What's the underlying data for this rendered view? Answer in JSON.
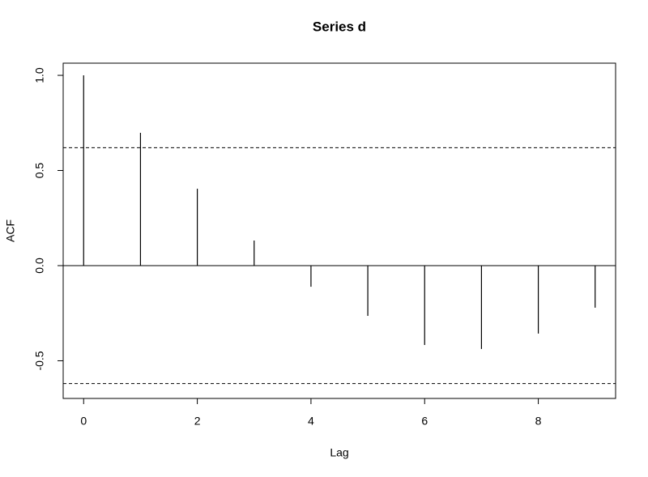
{
  "chart_data": {
    "type": "stem",
    "title": "Series  d",
    "xlabel": "Lag",
    "ylabel": "ACF",
    "x": [
      0,
      1,
      2,
      3,
      4,
      5,
      6,
      7,
      8,
      9
    ],
    "values": [
      1.0,
      0.698,
      0.404,
      0.132,
      -0.111,
      -0.264,
      -0.417,
      -0.438,
      -0.357,
      -0.221
    ],
    "color": "#000000",
    "ci": [
      0.62,
      -0.62
    ],
    "ci_color": "#000000",
    "xlim": [
      -0.36,
      9.36
    ],
    "xticks": [
      0,
      2,
      4,
      6,
      8
    ],
    "ylim": [
      -0.698,
      1.064
    ],
    "yticks": [
      -0.5,
      {
        "value": 0,
        "label": "0.0"
      },
      0.5,
      {
        "value": 1,
        "label": "1.0"
      }
    ]
  }
}
